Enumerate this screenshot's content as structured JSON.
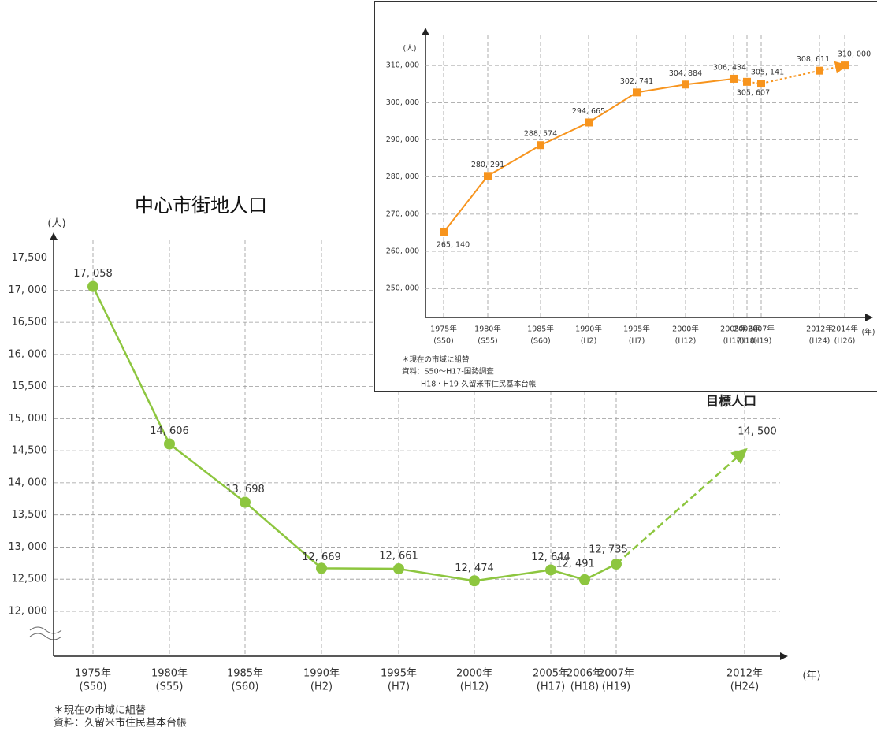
{
  "chart_data": [
    {
      "type": "line",
      "title": "中心市街地人口",
      "y_label": "(人)",
      "x_label": "(年)",
      "categories": [
        "1975年",
        "1980年",
        "1985年",
        "1990年",
        "1995年",
        "2000年",
        "2005年",
        "2006年",
        "2007年",
        "2012年"
      ],
      "eras": [
        "(S50)",
        "(S55)",
        "(S60)",
        "(H2)",
        "(H7)",
        "(H12)",
        "(H17)",
        "(H18)",
        "(H19)",
        "(H24)"
      ],
      "values": [
        17058,
        14606,
        13698,
        12669,
        12661,
        12474,
        12644,
        12491,
        12735,
        14500
      ],
      "value_labels": [
        "17, 058",
        "14, 606",
        "13, 698",
        "12, 669",
        "12, 661",
        "12, 474",
        "12, 644",
        "12, 491",
        "12, 735",
        "14, 500"
      ],
      "color": "#8dc63f",
      "marker": "circle",
      "dashed_from": 8,
      "grid": true,
      "annotation": "目標人口",
      "ylim": [
        11300,
        17900
      ],
      "yticks": [
        {
          "value": 12000,
          "label": "12, 000"
        },
        {
          "value": 12500,
          "label": "12,500"
        },
        {
          "value": 13000,
          "label": "13, 000"
        },
        {
          "value": 13500,
          "label": "13,500"
        },
        {
          "value": 14000,
          "label": "14, 000"
        },
        {
          "value": 14500,
          "label": "14,500"
        },
        {
          "value": 15000,
          "label": "15, 000"
        },
        {
          "value": 15500,
          "label": "15,500"
        },
        {
          "value": 16000,
          "label": "16, 000"
        },
        {
          "value": 16500,
          "label": "16,500"
        },
        {
          "value": 17000,
          "label": "17, 000"
        },
        {
          "value": 17500,
          "label": "17,500"
        }
      ],
      "notes": [
        "＊現在の市域に組替",
        "資料：久留米市住民基本台帳"
      ]
    },
    {
      "type": "line",
      "y_label": "(人)",
      "x_label": "(年)",
      "categories": [
        "1975年",
        "1980年",
        "1985年",
        "1990年",
        "1995年",
        "2000年",
        "2005年",
        "2006年",
        "2007年",
        "2012年",
        "2014年"
      ],
      "eras": [
        "(S50)",
        "(S55)",
        "(S60)",
        "(H2)",
        "(H7)",
        "(H12)",
        "(H17)",
        "(H18)",
        "(H19)",
        "(H24)",
        "(H26)"
      ],
      "values": [
        265140,
        280291,
        288574,
        294665,
        302741,
        304884,
        306434,
        305607,
        305141,
        308611,
        310000
      ],
      "value_labels": [
        "265, 140",
        "280, 291",
        "288, 574",
        "294, 665",
        "302, 741",
        "304, 884",
        "306, 434",
        "305, 607",
        "305, 141",
        "308, 611",
        "310, 000"
      ],
      "color": "#f7941d",
      "marker": "square",
      "dashed_from": 6,
      "grid": true,
      "ylim": [
        242200,
        320200
      ],
      "yticks": [
        {
          "value": 250000,
          "label": "250, 000"
        },
        {
          "value": 260000,
          "label": "260, 000"
        },
        {
          "value": 270000,
          "label": "270, 000"
        },
        {
          "value": 280000,
          "label": "280, 000"
        },
        {
          "value": 290000,
          "label": "290, 000"
        },
        {
          "value": 300000,
          "label": "300, 000"
        },
        {
          "value": 310000,
          "label": "310, 000"
        }
      ],
      "notes": [
        "＊現在の市域に組替",
        "資料：S50～H17-国勢調査",
        "H18・H19-久留米市住民基本台帳"
      ]
    }
  ]
}
